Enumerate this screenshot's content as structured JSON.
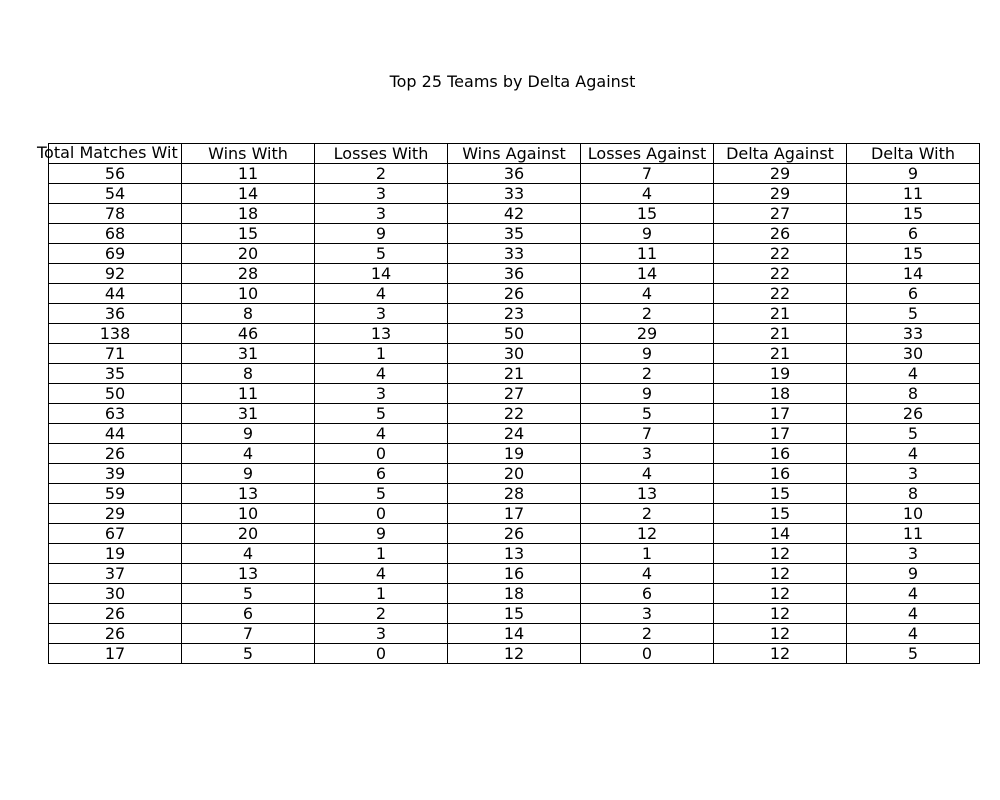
{
  "chart_data": {
    "type": "table",
    "title": "Top 25 Teams by Delta Against",
    "columns": [
      "Total Matches With",
      "Wins With",
      "Losses With",
      "Wins Against",
      "Losses Against",
      "Delta Against",
      "Delta With"
    ],
    "columns_displayed": [
      "Total Matches Wit",
      "Wins With",
      "Losses With",
      "Wins Against",
      "Losses Against",
      "Delta Against",
      "Delta With"
    ],
    "rows": [
      [
        56,
        11,
        2,
        36,
        7,
        29,
        9
      ],
      [
        54,
        14,
        3,
        33,
        4,
        29,
        11
      ],
      [
        78,
        18,
        3,
        42,
        15,
        27,
        15
      ],
      [
        68,
        15,
        9,
        35,
        9,
        26,
        6
      ],
      [
        69,
        20,
        5,
        33,
        11,
        22,
        15
      ],
      [
        92,
        28,
        14,
        36,
        14,
        22,
        14
      ],
      [
        44,
        10,
        4,
        26,
        4,
        22,
        6
      ],
      [
        36,
        8,
        3,
        23,
        2,
        21,
        5
      ],
      [
        138,
        46,
        13,
        50,
        29,
        21,
        33
      ],
      [
        71,
        31,
        1,
        30,
        9,
        21,
        30
      ],
      [
        35,
        8,
        4,
        21,
        2,
        19,
        4
      ],
      [
        50,
        11,
        3,
        27,
        9,
        18,
        8
      ],
      [
        63,
        31,
        5,
        22,
        5,
        17,
        26
      ],
      [
        44,
        9,
        4,
        24,
        7,
        17,
        5
      ],
      [
        26,
        4,
        0,
        19,
        3,
        16,
        4
      ],
      [
        39,
        9,
        6,
        20,
        4,
        16,
        3
      ],
      [
        59,
        13,
        5,
        28,
        13,
        15,
        8
      ],
      [
        29,
        10,
        0,
        17,
        2,
        15,
        10
      ],
      [
        67,
        20,
        9,
        26,
        12,
        14,
        11
      ],
      [
        19,
        4,
        1,
        13,
        1,
        12,
        3
      ],
      [
        37,
        13,
        4,
        16,
        4,
        12,
        9
      ],
      [
        30,
        5,
        1,
        18,
        6,
        12,
        4
      ],
      [
        26,
        6,
        2,
        15,
        3,
        12,
        4
      ],
      [
        26,
        7,
        3,
        14,
        2,
        12,
        4
      ],
      [
        17,
        5,
        0,
        12,
        0,
        12,
        5
      ]
    ]
  }
}
